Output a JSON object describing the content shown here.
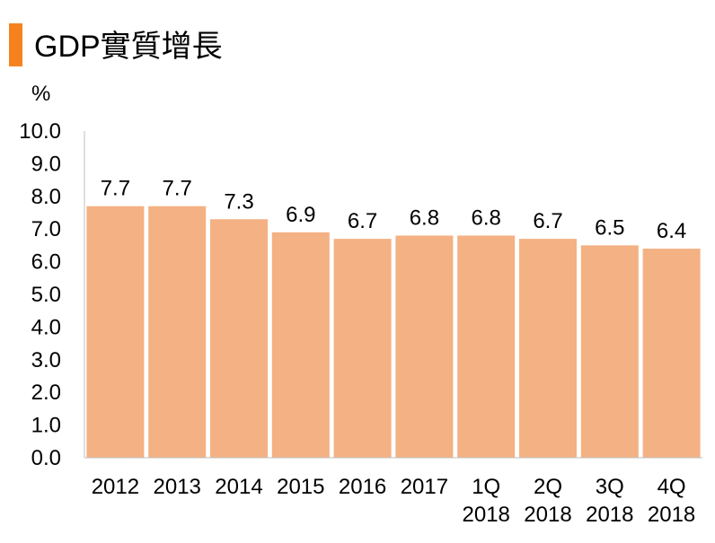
{
  "colors": {
    "accent": "#F5821F",
    "bar": "#F4B183",
    "axis": "#BFBFBF"
  },
  "chart_data": {
    "type": "bar",
    "title": "GDP實質增長",
    "ylabel": "%",
    "xlabel": "",
    "ylim": [
      0,
      10
    ],
    "yticks": [
      "0.0",
      "1.0",
      "2.0",
      "3.0",
      "4.0",
      "5.0",
      "6.0",
      "7.0",
      "8.0",
      "9.0",
      "10.0"
    ],
    "categories": [
      [
        "2012"
      ],
      [
        "2013"
      ],
      [
        "2014"
      ],
      [
        "2015"
      ],
      [
        "2016"
      ],
      [
        "2017"
      ],
      [
        "1Q",
        "2018"
      ],
      [
        "2Q",
        "2018"
      ],
      [
        "3Q",
        "2018"
      ],
      [
        "4Q",
        "2018"
      ]
    ],
    "values": [
      7.7,
      7.7,
      7.3,
      6.9,
      6.7,
      6.8,
      6.8,
      6.7,
      6.5,
      6.4
    ],
    "value_labels": [
      "7.7",
      "7.7",
      "7.3",
      "6.9",
      "6.7",
      "6.8",
      "6.8",
      "6.7",
      "6.5",
      "6.4"
    ],
    "grid": false,
    "legend": "none"
  }
}
